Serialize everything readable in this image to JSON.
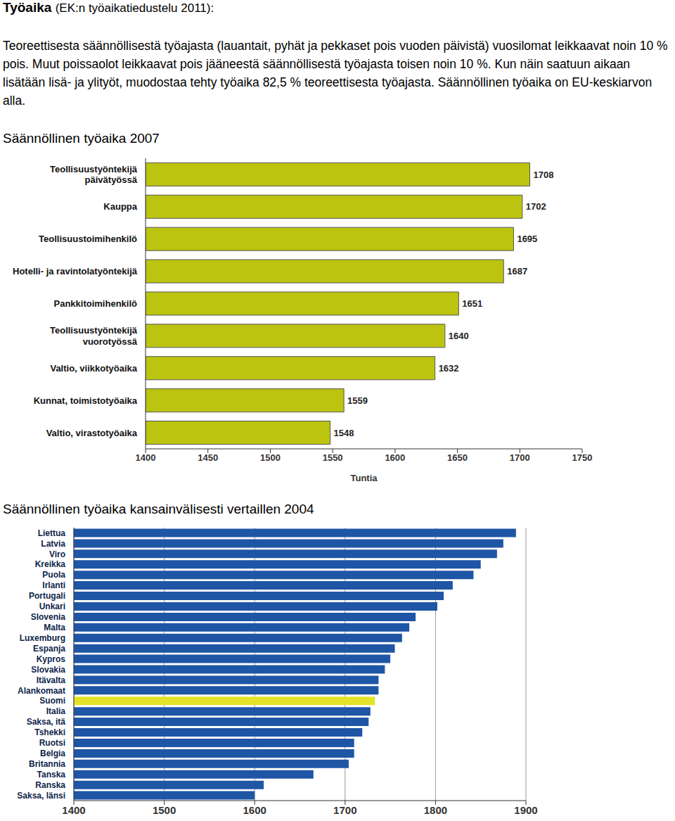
{
  "header": {
    "title": "Työaika",
    "subtitle": "(EK:n työaikatiedustelu 2011):"
  },
  "paragraph": "Teoreettisesta säännöllisestä työajasta (lauantait, pyhät ja pekkaset pois vuoden päivistä) vuosilomat leikkaavat noin 10 % pois. Muut poissaolot leikkaavat pois jääneestä säännöllisestä työajasta toisen noin 10 %. Kun näin saatuun aikaan lisätään lisä- ja ylityöt, muodostaa tehty työaika 82,5 % teoreettisesta työajasta. Säännöllinen työaika on EU-keskiarvon alla.",
  "chart_data": [
    {
      "type": "bar",
      "title": "Säännöllinen työaika 2007",
      "orientation": "horizontal",
      "categories": [
        "Teollisuustyöntekijä päivätyössä",
        "Kauppa",
        "Teollisuustoimihenkilö",
        "Hotelli- ja ravintolatyöntekijä",
        "Pankkitoimihenkilö",
        "Teollisuustyöntekijä vuorotyössä",
        "Valtio, viikkotyöaika",
        "Kunnat, toimistotyöaika",
        "Valtio, virastotyöaika"
      ],
      "values": [
        1708,
        1702,
        1695,
        1687,
        1651,
        1640,
        1632,
        1559,
        1548
      ],
      "color": "#bcc40f",
      "x_label": "Tuntia",
      "xlim": [
        1400,
        1750
      ],
      "xticks": [
        1400,
        1450,
        1500,
        1550,
        1600,
        1650,
        1700,
        1750
      ],
      "grid": false,
      "data_labels": true
    },
    {
      "type": "bar",
      "title": "Säännöllinen työaika kansainvälisesti vertaillen 2004",
      "orientation": "horizontal",
      "categories": [
        "Liettua",
        "Latvia",
        "Viro",
        "Kreikka",
        "Puola",
        "Irlanti",
        "Portugali",
        "Unkari",
        "Slovenia",
        "Malta",
        "Luxemburg",
        "Espanja",
        "Kypros",
        "Slovakia",
        "Itävalta",
        "Alankomaat",
        "Suomi",
        "Italia",
        "Saksa, itä",
        "Tshekki",
        "Ruotsi",
        "Belgia",
        "Britannia",
        "Tanska",
        "Ranska",
        "Saksa, länsi"
      ],
      "values": [
        1889,
        1875,
        1868,
        1850,
        1842,
        1819,
        1809,
        1802,
        1778,
        1771,
        1763,
        1755,
        1750,
        1744,
        1737,
        1737,
        1733,
        1728,
        1726,
        1719,
        1710,
        1710,
        1704,
        1665,
        1610,
        1600
      ],
      "colors": [
        "#1f55a5",
        "#1f55a5",
        "#1f55a5",
        "#1f55a5",
        "#1f55a5",
        "#1f55a5",
        "#1f55a5",
        "#1f55a5",
        "#1f55a5",
        "#1f55a5",
        "#1f55a5",
        "#1f55a5",
        "#1f55a5",
        "#1f55a5",
        "#1f55a5",
        "#1f55a5",
        "#e3e32a",
        "#1f55a5",
        "#1f55a5",
        "#1f55a5",
        "#1f55a5",
        "#1f55a5",
        "#1f55a5",
        "#1f55a5",
        "#1f55a5",
        "#1f55a5"
      ],
      "xlim": [
        1400,
        1900
      ],
      "xticks": [
        1400,
        1500,
        1600,
        1700,
        1800,
        1900
      ],
      "grid": true,
      "data_labels": false
    }
  ]
}
